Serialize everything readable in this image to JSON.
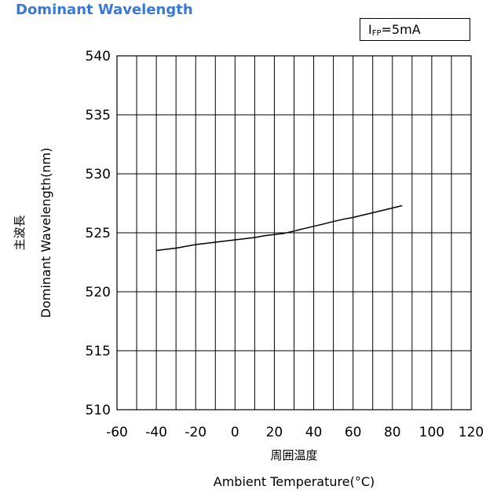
{
  "title": "Dominant Wavelength",
  "condition": {
    "symbol": "I",
    "subscript": "FP",
    "equals": "=",
    "value": "5mA"
  },
  "chart_data": {
    "type": "line",
    "title": "Dominant Wavelength",
    "xlabel_jp": "周囲温度",
    "xlabel": "Ambient Temperature(°C)",
    "ylabel_jp": "主波長",
    "ylabel": "Dominant Wavelength(nm)",
    "xlim": [
      -60,
      120
    ],
    "ylim": [
      510,
      540
    ],
    "xticks": [
      -60,
      -40,
      -20,
      0,
      20,
      40,
      60,
      80,
      100,
      120
    ],
    "yticks": [
      510,
      515,
      520,
      525,
      530,
      535,
      540
    ],
    "x_minor_step": 10,
    "grid": true,
    "series": [
      {
        "x": [
          -40,
          -35,
          -30,
          -25,
          -20,
          -15,
          -10,
          -5,
          0,
          5,
          10,
          15,
          20,
          25,
          30,
          35,
          40,
          45,
          50,
          55,
          60,
          65,
          70,
          75,
          80,
          85
        ],
        "y": [
          523.5,
          523.6,
          523.7,
          523.85,
          524.0,
          524.1,
          524.2,
          524.3,
          524.4,
          524.5,
          524.6,
          524.75,
          524.85,
          524.95,
          525.15,
          525.35,
          525.55,
          525.75,
          525.95,
          526.15,
          526.3,
          526.5,
          526.7,
          526.9,
          527.1,
          527.3
        ]
      }
    ]
  }
}
